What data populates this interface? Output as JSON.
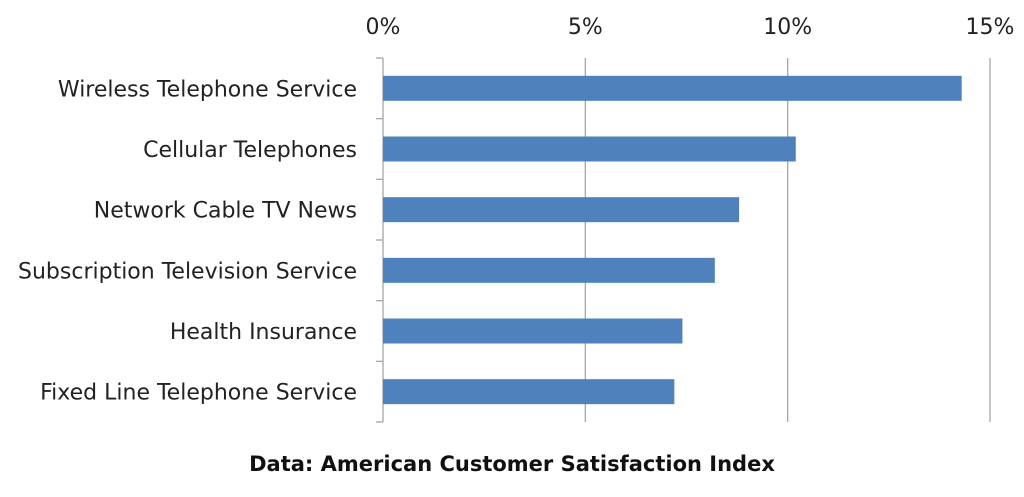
{
  "chart_data": {
    "type": "bar",
    "orientation": "horizontal",
    "categories": [
      "Wireless Telephone Service",
      "Cellular Telephones",
      "Network Cable TV News",
      "Subscription Television Service",
      "Health Insurance",
      "Fixed Line Telephone Service"
    ],
    "values": [
      14.3,
      10.2,
      8.8,
      8.2,
      7.4,
      7.2
    ],
    "xlim": [
      0,
      15
    ],
    "x_ticks": [
      0,
      5,
      10,
      15
    ],
    "x_tick_labels": [
      "0%",
      "5%",
      "10%",
      "15%"
    ],
    "x_axis_position": "top",
    "grid": "vertical",
    "title": "",
    "xlabel": "",
    "ylabel": "",
    "legend": "none",
    "bar_color": "#4F81BD",
    "grid_color": "#A6A6A6"
  },
  "footer": {
    "note": "Data: American Customer Satisfaction Index"
  }
}
